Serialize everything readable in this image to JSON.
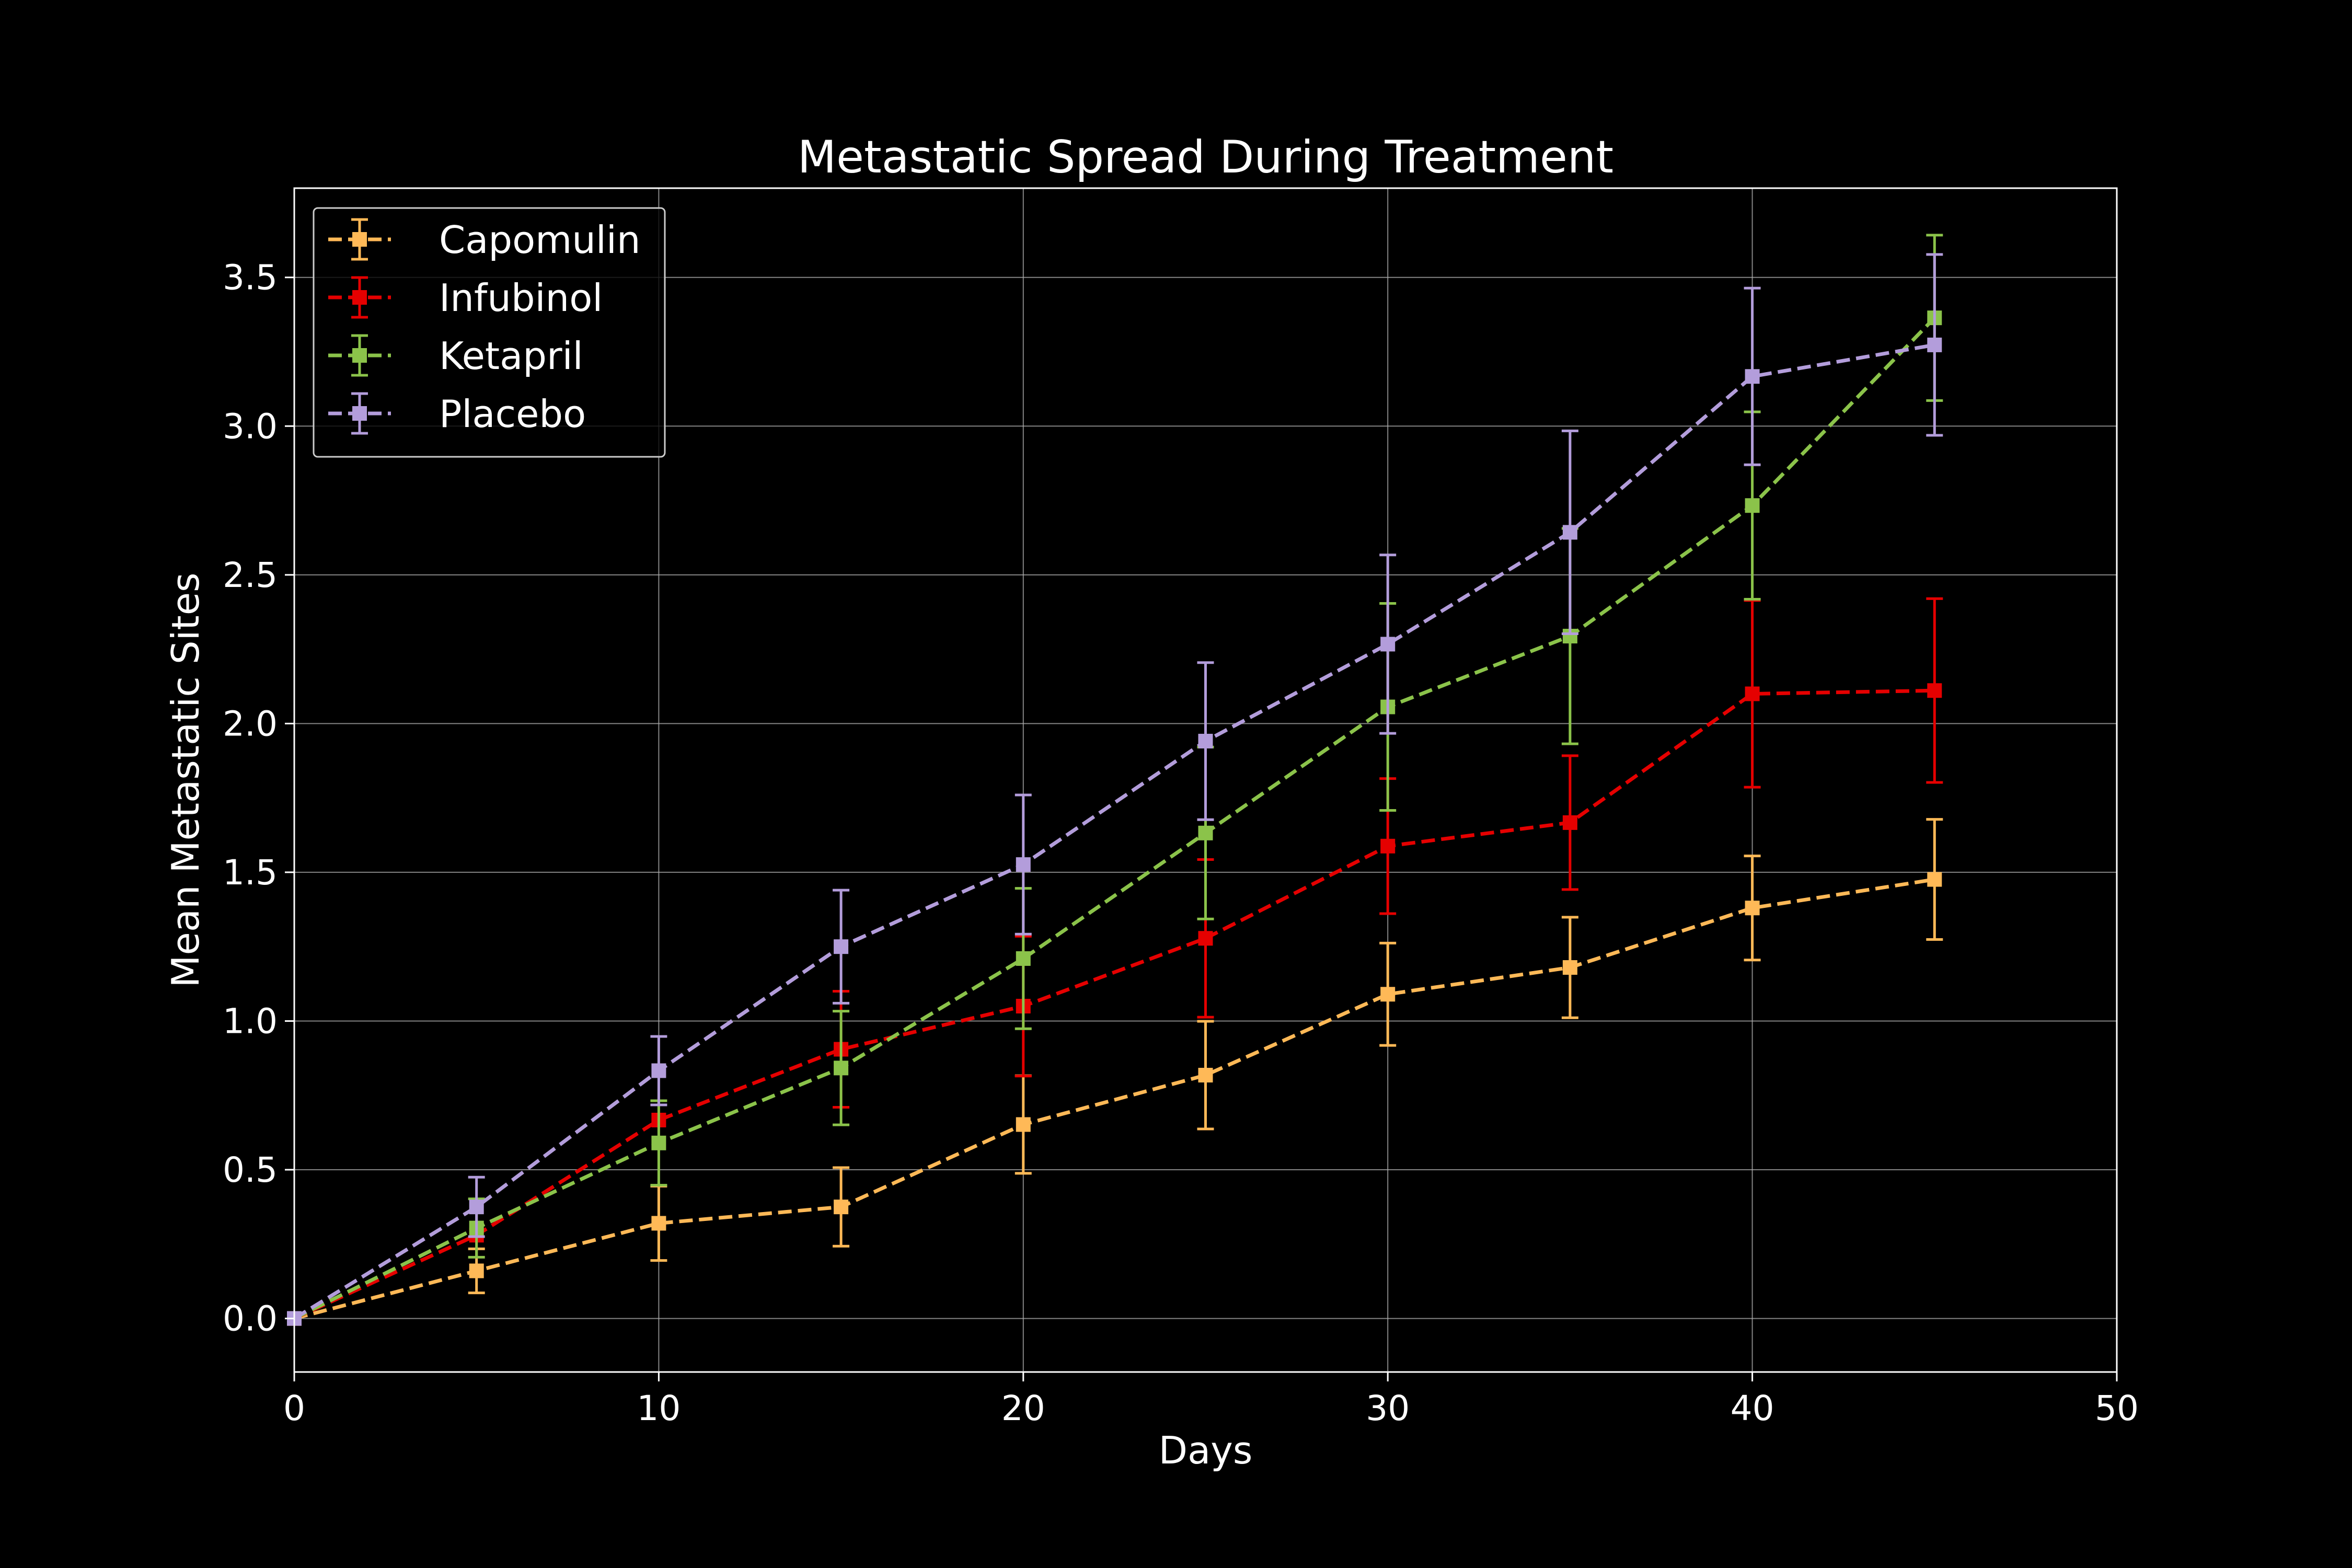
{
  "chart_data": {
    "type": "line",
    "title": "Metastatic Spread During Treatment",
    "xlabel": "Days",
    "ylabel": "Mean Metastatic Sites",
    "xlim": [
      0,
      50
    ],
    "ylim": [
      -0.18,
      3.8
    ],
    "xticks": [
      "0",
      "10",
      "20",
      "30",
      "40",
      "50"
    ],
    "yticks": [
      "0.0",
      "0.5",
      "1.0",
      "1.5",
      "2.0",
      "2.5",
      "3.0",
      "3.5"
    ],
    "grid": true,
    "legend_position": "upper-left",
    "background_color": "#000000",
    "foreground_color": "#ffffff",
    "marker": "square",
    "line_style": "dashed",
    "x": [
      0,
      5,
      10,
      15,
      20,
      25,
      30,
      35,
      40,
      45
    ],
    "series": [
      {
        "name": "Capomulin",
        "color": "#FFB957",
        "values": [
          0.0,
          0.16,
          0.32,
          0.375,
          0.652,
          0.818,
          1.09,
          1.18,
          1.38,
          1.476
        ],
        "errors": [
          0.0,
          0.074,
          0.125,
          0.132,
          0.164,
          0.181,
          0.172,
          0.169,
          0.175,
          0.202
        ]
      },
      {
        "name": "Infubinol",
        "color": "#E50000",
        "values": [
          0.0,
          0.28,
          0.667,
          0.905,
          1.05,
          1.278,
          1.588,
          1.667,
          2.1,
          2.111
        ],
        "errors": [
          0.0,
          0.0,
          0.0,
          0.195,
          0.235,
          0.265,
          0.227,
          0.225,
          0.314,
          0.309
        ]
      },
      {
        "name": "Ketapril",
        "color": "#8BC34A",
        "values": [
          0.0,
          0.304,
          0.59,
          0.842,
          1.21,
          1.632,
          2.056,
          2.294,
          2.733,
          3.364
        ],
        "errors": [
          0.0,
          0.098,
          0.142,
          0.191,
          0.236,
          0.289,
          0.348,
          0.362,
          0.315,
          0.278
        ]
      },
      {
        "name": "Placebo",
        "color": "#B39DDB",
        "values": [
          0.0,
          0.375,
          0.833,
          1.25,
          1.526,
          1.941,
          2.267,
          2.643,
          3.167,
          3.273
        ],
        "errors": [
          0.0,
          0.1,
          0.115,
          0.19,
          0.234,
          0.264,
          0.3,
          0.341,
          0.297,
          0.304
        ]
      }
    ]
  }
}
